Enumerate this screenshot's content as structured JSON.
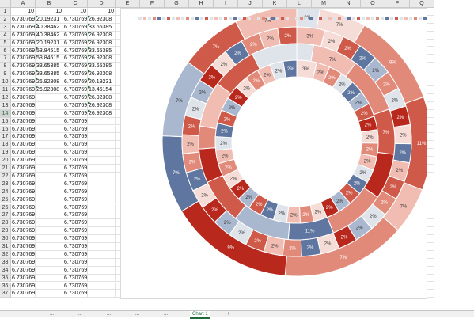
{
  "columns": [
    "A",
    "B",
    "C",
    "D",
    "E",
    "F",
    "G",
    "H",
    "I",
    "J",
    "K",
    "L",
    "M",
    "N",
    "O",
    "P",
    "Q"
  ],
  "selected_row": "14",
  "rows": [
    {
      "n": "1",
      "a": "10",
      "b": "10",
      "c": "10",
      "d": "10"
    },
    {
      "n": "2",
      "a": "6.730769",
      "b": "20.19231",
      "c": "6.730769",
      "d": "26.92308"
    },
    {
      "n": "3",
      "a": "6.730769",
      "b": "40.38462",
      "c": "6.730769",
      "d": "33.65385"
    },
    {
      "n": "4",
      "a": "6.730769",
      "b": "40.38462",
      "c": "6.730769",
      "d": "26.92308"
    },
    {
      "n": "5",
      "a": "6.730769",
      "b": "20.19231",
      "c": "6.730769",
      "d": "26.92308"
    },
    {
      "n": "6",
      "a": "6.730769",
      "b": "53.84615",
      "c": "6.730769",
      "d": "33.65385"
    },
    {
      "n": "7",
      "a": "6.730769",
      "b": "53.84615",
      "c": "6.730769",
      "d": "26.92308"
    },
    {
      "n": "8",
      "a": "6.730769",
      "b": "33.65385",
      "c": "6.730769",
      "d": "33.65385"
    },
    {
      "n": "9",
      "a": "6.730769",
      "b": "33.65385",
      "c": "6.730769",
      "d": "26.92308"
    },
    {
      "n": "10",
      "a": "6.730769",
      "b": "26.92308",
      "c": "6.730769",
      "d": "20.19231"
    },
    {
      "n": "11",
      "a": "6.730769",
      "b": "26.92308",
      "c": "6.730769",
      "d": "13.46154"
    },
    {
      "n": "12",
      "a": "6.730769",
      "b": "",
      "c": "6.730769",
      "d": "26.92308"
    },
    {
      "n": "13",
      "a": "6.730769",
      "b": "",
      "c": "6.730769",
      "d": "26.92308"
    },
    {
      "n": "14",
      "a": "6.730769",
      "b": "",
      "c": "6.730769",
      "d": "26.92308"
    },
    {
      "n": "15",
      "a": "6.730769",
      "b": "",
      "c": "6.730769",
      "d": ""
    },
    {
      "n": "16",
      "a": "6.730769",
      "b": "",
      "c": "6.730769",
      "d": ""
    },
    {
      "n": "17",
      "a": "6.730769",
      "b": "",
      "c": "6.730769",
      "d": ""
    },
    {
      "n": "18",
      "a": "6.730769",
      "b": "",
      "c": "6.730769",
      "d": ""
    },
    {
      "n": "19",
      "a": "6.730769",
      "b": "",
      "c": "6.730769",
      "d": ""
    },
    {
      "n": "20",
      "a": "6.730769",
      "b": "",
      "c": "6.730769",
      "d": ""
    },
    {
      "n": "21",
      "a": "6.730769",
      "b": "",
      "c": "6.730769",
      "d": ""
    },
    {
      "n": "22",
      "a": "6.730769",
      "b": "",
      "c": "6.730769",
      "d": ""
    },
    {
      "n": "23",
      "a": "6.730769",
      "b": "",
      "c": "6.730769",
      "d": ""
    },
    {
      "n": "24",
      "a": "6.730769",
      "b": "",
      "c": "6.730769",
      "d": ""
    },
    {
      "n": "25",
      "a": "6.730769",
      "b": "",
      "c": "6.730769",
      "d": ""
    },
    {
      "n": "26",
      "a": "6.730769",
      "b": "",
      "c": "6.730769",
      "d": ""
    },
    {
      "n": "27",
      "a": "6.730769",
      "b": "",
      "c": "6.730769",
      "d": ""
    },
    {
      "n": "28",
      "a": "6.730769",
      "b": "",
      "c": "6.730769",
      "d": ""
    },
    {
      "n": "29",
      "a": "6.730769",
      "b": "",
      "c": "6.730769",
      "d": ""
    },
    {
      "n": "30",
      "a": "6.730769",
      "b": "",
      "c": "6.730769",
      "d": ""
    },
    {
      "n": "31",
      "a": "6.730769",
      "b": "",
      "c": "6.730769",
      "d": ""
    },
    {
      "n": "32",
      "a": "6.730769",
      "b": "",
      "c": "6.730769",
      "d": ""
    },
    {
      "n": "33",
      "a": "6.730769",
      "b": "",
      "c": "6.730769",
      "d": ""
    },
    {
      "n": "34",
      "a": "6.730769",
      "b": "",
      "c": "6.730769",
      "d": ""
    },
    {
      "n": "35",
      "a": "6.730769",
      "b": "",
      "c": "6.730769",
      "d": ""
    },
    {
      "n": "36",
      "a": "6.730769",
      "b": "",
      "c": "6.730769",
      "d": ""
    },
    {
      "n": "37",
      "a": "6.730769",
      "b": "",
      "c": "6.730769",
      "d": ""
    }
  ],
  "sheet_tabs": [
    {
      "label": "...",
      "active": false
    },
    {
      "label": "...",
      "active": false
    },
    {
      "label": "...",
      "active": false
    },
    {
      "label": "...",
      "active": false
    },
    {
      "label": "...",
      "active": false
    },
    {
      "label": "Chart 1",
      "active": true
    },
    {
      "label": "+",
      "active": false
    }
  ],
  "colors": {
    "dark_red": "#b8281d",
    "red": "#cf5a4a",
    "salmon": "#e28a7a",
    "light_salmon": "#f1bdb3",
    "pale": "#f6dcd6",
    "grey": "#dfe3ea",
    "light_blue": "#a9b8cf",
    "blue": "#5f76a0",
    "label_light": "#ffffff",
    "label_dark": "#333333"
  },
  "chart_data": {
    "type": "pie",
    "title": "",
    "variant": "multi-level doughnut",
    "legend": "top",
    "series": [
      {
        "values": [
          10,
          20.19231,
          40.38462,
          40.38462,
          20.19231,
          53.84615,
          53.84615,
          33.65385,
          33.65385,
          26.92308,
          26.92308
        ],
        "colors": [
          "grey",
          "pale",
          "salmon",
          "red",
          "light_salmon",
          "salmon",
          "dark_red",
          "blue",
          "light_blue",
          "red",
          "light_salmon"
        ],
        "labels": [
          "3%",
          "7%",
          "9%",
          "11%",
          "7%",
          "7%",
          "9%",
          "7%",
          "7%",
          "7%",
          "7%"
        ]
      },
      {
        "values": [
          10,
          6.730769,
          6.730769,
          6.730769,
          6.730769,
          6.730769,
          6.730769,
          6.730769,
          6.730769,
          6.730769,
          6.730769,
          6.730769,
          6.730769,
          6.730769,
          6.730769,
          6.730769,
          6.730769,
          6.730769,
          6.730769,
          6.730769,
          6.730769,
          6.730769,
          6.730769,
          6.730769,
          6.730769,
          6.730769,
          6.730769,
          6.730769,
          6.730769,
          6.730769,
          6.730769,
          6.730769,
          6.730769,
          6.730769,
          6.730769,
          6.730769,
          6.730769
        ],
        "colors": [
          "light_salmon",
          "pale",
          "red",
          "blue",
          "light_blue",
          "salmon",
          "grey",
          "dark_red",
          "pale",
          "blue",
          "light_salmon",
          "red",
          "salmon",
          "grey",
          "light_blue",
          "dark_red",
          "pale",
          "blue",
          "salmon",
          "light_salmon",
          "red",
          "grey",
          "light_blue",
          "dark_red",
          "pale",
          "blue",
          "salmon",
          "light_salmon",
          "red",
          "grey",
          "light_blue",
          "dark_red",
          "pale",
          "blue",
          "salmon",
          "light_salmon",
          "red"
        ],
        "labels": [
          "3%",
          "2%",
          "2%",
          "2%",
          "2%",
          "2%",
          "2%",
          "2%",
          "2%",
          "2%",
          "2%",
          "2%",
          "2%",
          "2%",
          "2%",
          "2%",
          "2%",
          "2%",
          "2%",
          "2%",
          "2%",
          "2%",
          "2%",
          "2%",
          "2%",
          "2%",
          "2%",
          "2%",
          "2%",
          "2%",
          "2%",
          "2%",
          "2%",
          "2%",
          "2%",
          "2%",
          "2%"
        ]
      },
      {
        "values": [
          10,
          26.92308,
          33.65385,
          26.92308,
          26.92308,
          33.65385,
          26.92308,
          33.65385,
          26.92308,
          20.19231,
          13.46154,
          26.92308,
          26.92308,
          26.92308
        ],
        "colors": [
          "grey",
          "light_salmon",
          "salmon",
          "red",
          "dark_red",
          "salmon",
          "blue",
          "light_blue",
          "red",
          "dark_red",
          "salmon",
          "light_salmon",
          "red",
          "grey"
        ],
        "labels": [
          "",
          "7%",
          "",
          "7%",
          "",
          "",
          "11%",
          "",
          "",
          "",
          "",
          "",
          "",
          ""
        ]
      },
      {
        "values": [
          10,
          6.730769,
          6.730769,
          6.730769,
          6.730769,
          6.730769,
          6.730769,
          6.730769,
          6.730769,
          6.730769,
          6.730769,
          6.730769,
          6.730769,
          6.730769,
          6.730769,
          6.730769,
          6.730769,
          6.730769,
          6.730769,
          6.730769,
          6.730769,
          6.730769,
          6.730769,
          6.730769,
          6.730769,
          6.730769,
          6.730769,
          6.730769,
          6.730769,
          6.730769,
          6.730769,
          6.730769,
          6.730769,
          6.730769,
          6.730769,
          6.730769,
          6.730769
        ],
        "colors": [
          "pale",
          "light_salmon",
          "salmon",
          "grey",
          "blue",
          "light_blue",
          "red",
          "dark_red",
          "pale",
          "salmon",
          "light_salmon",
          "grey",
          "blue",
          "red",
          "light_blue",
          "dark_red",
          "pale",
          "salmon",
          "light_salmon",
          "grey",
          "blue",
          "red",
          "light_blue",
          "dark_red",
          "pale",
          "salmon",
          "light_salmon",
          "grey",
          "blue",
          "red",
          "light_blue",
          "dark_red",
          "pale",
          "salmon",
          "light_salmon",
          "grey",
          "blue"
        ],
        "labels": [
          "3%",
          "2%",
          "2%",
          "2%",
          "2%",
          "2%",
          "2%",
          "2%",
          "2%",
          "2%",
          "2%",
          "2%",
          "2%",
          "2%",
          "2%",
          "2%",
          "2%",
          "2%",
          "2%",
          "2%",
          "2%",
          "2%",
          "2%",
          "2%",
          "2%",
          "2%",
          "2%",
          "2%",
          "2%",
          "2%",
          "2%",
          "2%",
          "2%",
          "2%",
          "2%",
          "2%",
          "2%"
        ]
      }
    ],
    "legend_swatches": [
      "grey",
      "light_salmon",
      "grey",
      "salmon",
      "blue",
      "grey",
      "red",
      "grey",
      "light_salmon",
      "grey",
      "salmon",
      "grey",
      "blue",
      "grey",
      "red",
      "grey",
      "light_salmon",
      "grey",
      "salmon",
      "grey",
      "blue",
      "grey",
      "red",
      "grey",
      "light_salmon",
      "grey",
      "salmon",
      "grey",
      "blue",
      "grey",
      "red",
      "grey",
      "light_salmon",
      "grey",
      "salmon",
      "grey",
      "blue",
      "grey",
      "red",
      "grey",
      "light_salmon",
      "grey",
      "salmon",
      "grey",
      "blue",
      "grey",
      "red",
      "grey",
      "light_salmon",
      "grey",
      "salmon",
      "grey",
      "blue",
      "grey",
      "red",
      "grey",
      "light_salmon",
      "grey",
      "salmon",
      "grey",
      "blue"
    ]
  }
}
